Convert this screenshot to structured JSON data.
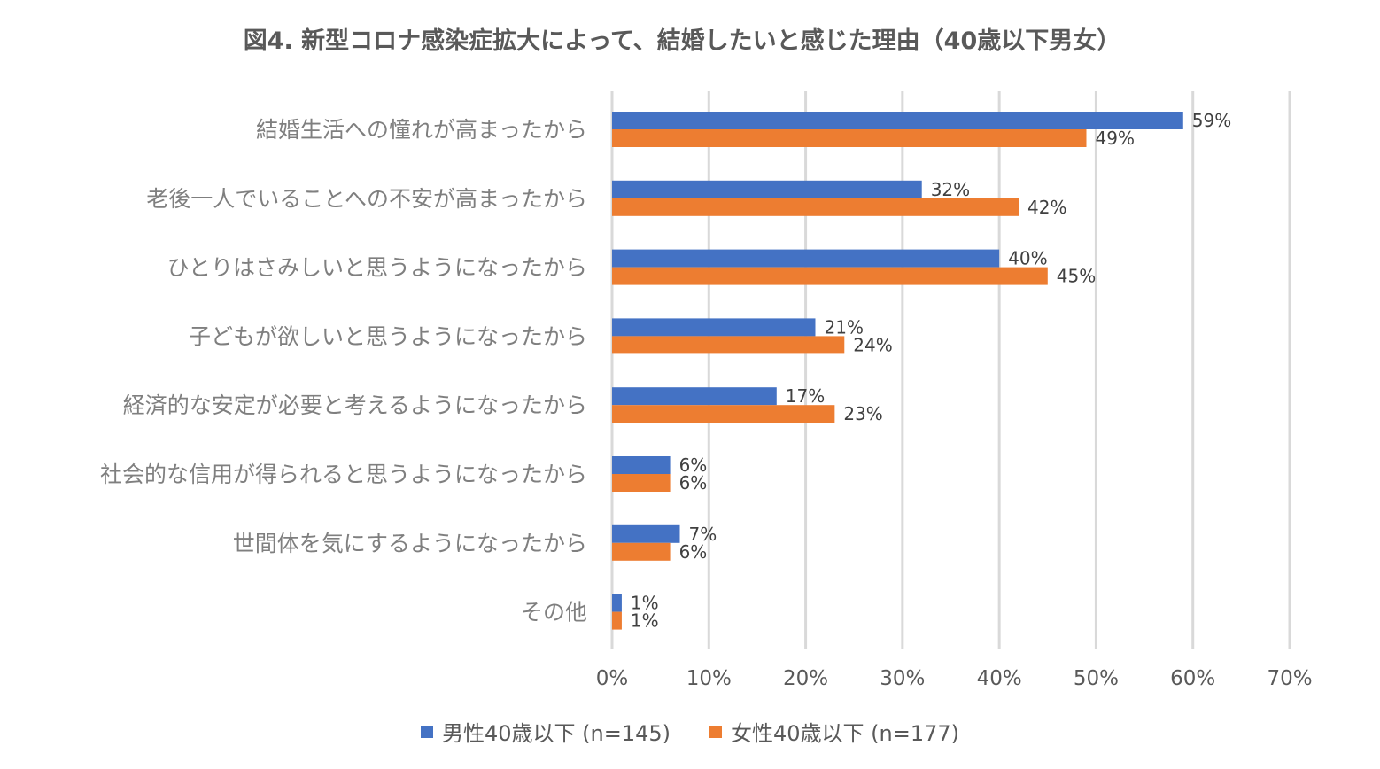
{
  "chart_data": {
    "type": "bar",
    "orientation": "horizontal",
    "title": "図4. 新型コロナ感染症拡大によって、結婚したいと感じた理由（40歳以下男女）",
    "categories": [
      "結婚生活への憧れが高まったから",
      "老後一人でいることへの不安が高まったから",
      "ひとりはさみしいと思うようになったから",
      "子どもが欲しいと思うようになったから",
      "経済的な安定が必要と考えるようになったから",
      "社会的な信用が得られると思うようになったから",
      "世間体を気にするようになったから",
      "その他"
    ],
    "series": [
      {
        "name": "男性40歳以下 (n=145)",
        "color": "#4472c4",
        "values": [
          59,
          32,
          40,
          21,
          17,
          6,
          7,
          1
        ],
        "labels": [
          "59%",
          "32%",
          "40%",
          "21%",
          "17%",
          "6%",
          "7%",
          "1%"
        ]
      },
      {
        "name": "女性40歳以下 (n=177)",
        "color": "#ed7d31",
        "values": [
          49,
          42,
          45,
          24,
          23,
          6,
          6,
          1
        ],
        "labels": [
          "49%",
          "42%",
          "45%",
          "24%",
          "23%",
          "6%",
          "6%",
          "1%"
        ]
      }
    ],
    "xlim": [
      0,
      70
    ],
    "xticks": [
      "0%",
      "10%",
      "20%",
      "30%",
      "40%",
      "50%",
      "60%",
      "70%"
    ],
    "grid": true,
    "legend": "bottom"
  }
}
